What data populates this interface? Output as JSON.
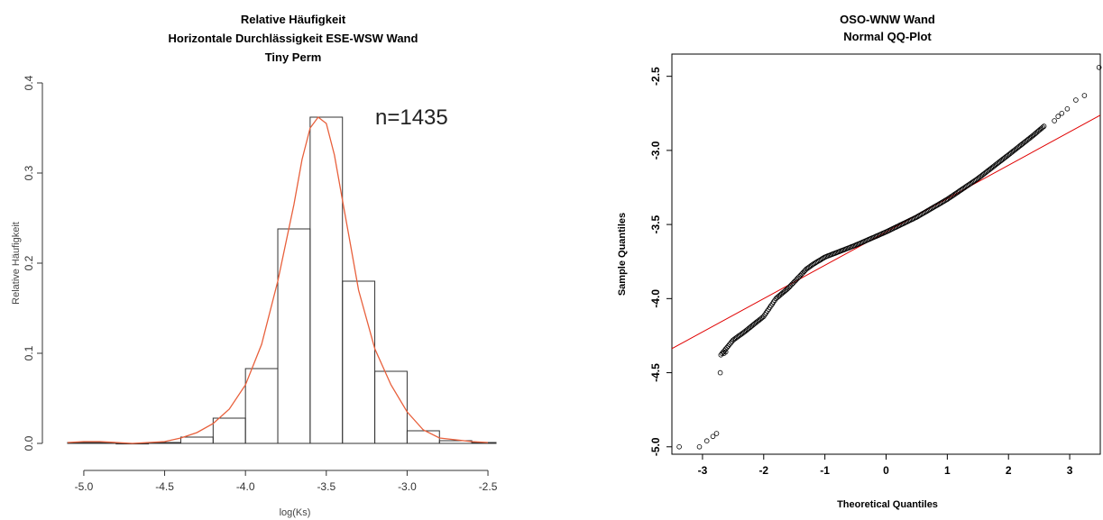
{
  "chart_data": [
    {
      "type": "bar",
      "title_lines": [
        "Relative Häufigkeit",
        "Horizontale Durchlässigkeit ESE-WSW Wand",
        "Tiny Perm"
      ],
      "xlabel": "log(Ks)",
      "ylabel": "Relative Häufigkeit",
      "annotation": "n=1435",
      "xlim": [
        -5.1,
        -2.45
      ],
      "ylim": [
        0,
        0.4
      ],
      "xticks": [
        -5.0,
        -4.5,
        -4.0,
        -3.5,
        -3.0,
        -2.5
      ],
      "xtick_labels": [
        "-5.0",
        "-4.5",
        "-4.0",
        "-3.5",
        "-3.0",
        "-2.5"
      ],
      "yticks": [
        0.0,
        0.1,
        0.2,
        0.3,
        0.4
      ],
      "ytick_labels": [
        "0.0",
        "0.1",
        "0.2",
        "0.3",
        "0.4"
      ],
      "bins": [
        {
          "x0": -5.2,
          "x1": -5.0,
          "value": 0.001
        },
        {
          "x0": -5.0,
          "x1": -4.8,
          "value": 0.001
        },
        {
          "x0": -4.8,
          "x1": -4.6,
          "value": 0.0
        },
        {
          "x0": -4.6,
          "x1": -4.4,
          "value": 0.001
        },
        {
          "x0": -4.4,
          "x1": -4.2,
          "value": 0.007
        },
        {
          "x0": -4.2,
          "x1": -4.0,
          "value": 0.028
        },
        {
          "x0": -4.0,
          "x1": -3.8,
          "value": 0.083
        },
        {
          "x0": -3.8,
          "x1": -3.6,
          "value": 0.238
        },
        {
          "x0": -3.6,
          "x1": -3.4,
          "value": 0.362
        },
        {
          "x0": -3.4,
          "x1": -3.2,
          "value": 0.18
        },
        {
          "x0": -3.2,
          "x1": -3.0,
          "value": 0.08
        },
        {
          "x0": -3.0,
          "x1": -2.8,
          "value": 0.014
        },
        {
          "x0": -2.8,
          "x1": -2.6,
          "value": 0.003
        },
        {
          "x0": -2.6,
          "x1": -2.4,
          "value": 0.001
        }
      ],
      "density_line": {
        "color": "#e8603c",
        "x": [
          -5.1,
          -5.0,
          -4.9,
          -4.8,
          -4.7,
          -4.6,
          -4.5,
          -4.4,
          -4.3,
          -4.2,
          -4.1,
          -4.0,
          -3.9,
          -3.8,
          -3.7,
          -3.65,
          -3.6,
          -3.55,
          -3.5,
          -3.45,
          -3.4,
          -3.35,
          -3.3,
          -3.2,
          -3.1,
          -3.0,
          -2.9,
          -2.8,
          -2.7,
          -2.6,
          -2.5
        ],
        "y": [
          0.001,
          0.002,
          0.002,
          0.001,
          0.0,
          0.001,
          0.002,
          0.006,
          0.012,
          0.022,
          0.038,
          0.065,
          0.11,
          0.18,
          0.265,
          0.315,
          0.35,
          0.362,
          0.355,
          0.32,
          0.27,
          0.22,
          0.17,
          0.105,
          0.065,
          0.035,
          0.015,
          0.006,
          0.004,
          0.002,
          0.001
        ]
      }
    },
    {
      "type": "scatter",
      "title_lines": [
        "OSO-WNW Wand",
        "Normal QQ-Plot"
      ],
      "xlabel": "Theoretical Quantiles",
      "ylabel": "Sample Quantiles",
      "xlim": [
        -3.5,
        3.5
      ],
      "ylim": [
        -5.05,
        -2.35
      ],
      "xticks": [
        -3,
        -2,
        -1,
        0,
        1,
        2,
        3
      ],
      "xtick_labels": [
        "-3",
        "-2",
        "-1",
        "0",
        "1",
        "2",
        "3"
      ],
      "yticks": [
        -5.0,
        -4.5,
        -4.0,
        -3.5,
        -3.0,
        -2.5
      ],
      "ytick_labels": [
        "-5.0",
        "-4.5",
        "-4.0",
        "-3.5",
        "-3.0",
        "-2.5"
      ],
      "reference_line": {
        "color": "#e00000",
        "intercept": -3.55,
        "slope": 0.225
      },
      "point_color": "#000000",
      "curve_knots": {
        "x": [
          -2.7,
          -2.6,
          -2.5,
          -2.3,
          -2.0,
          -1.8,
          -1.6,
          -1.3,
          -1.2,
          -1.0,
          -0.5,
          0.0,
          0.5,
          1.0,
          1.5,
          2.0,
          2.4,
          2.6
        ],
        "y": [
          -4.38,
          -4.33,
          -4.28,
          -4.22,
          -4.12,
          -4.0,
          -3.93,
          -3.8,
          -3.77,
          -3.72,
          -3.64,
          -3.55,
          -3.45,
          -3.33,
          -3.19,
          -3.03,
          -2.9,
          -2.83
        ]
      },
      "sparse_points": {
        "x": [
          -3.38,
          -3.05,
          -2.93,
          -2.83,
          -2.77,
          -2.71,
          -2.65,
          -2.62,
          2.75,
          2.81,
          2.87,
          2.96,
          3.1,
          3.24,
          3.48
        ],
        "y": [
          -5.0,
          -5.0,
          -4.96,
          -4.93,
          -4.91,
          -4.5,
          -4.37,
          -4.36,
          -2.8,
          -2.77,
          -2.75,
          -2.72,
          -2.66,
          -2.63,
          -2.44
        ]
      }
    }
  ]
}
